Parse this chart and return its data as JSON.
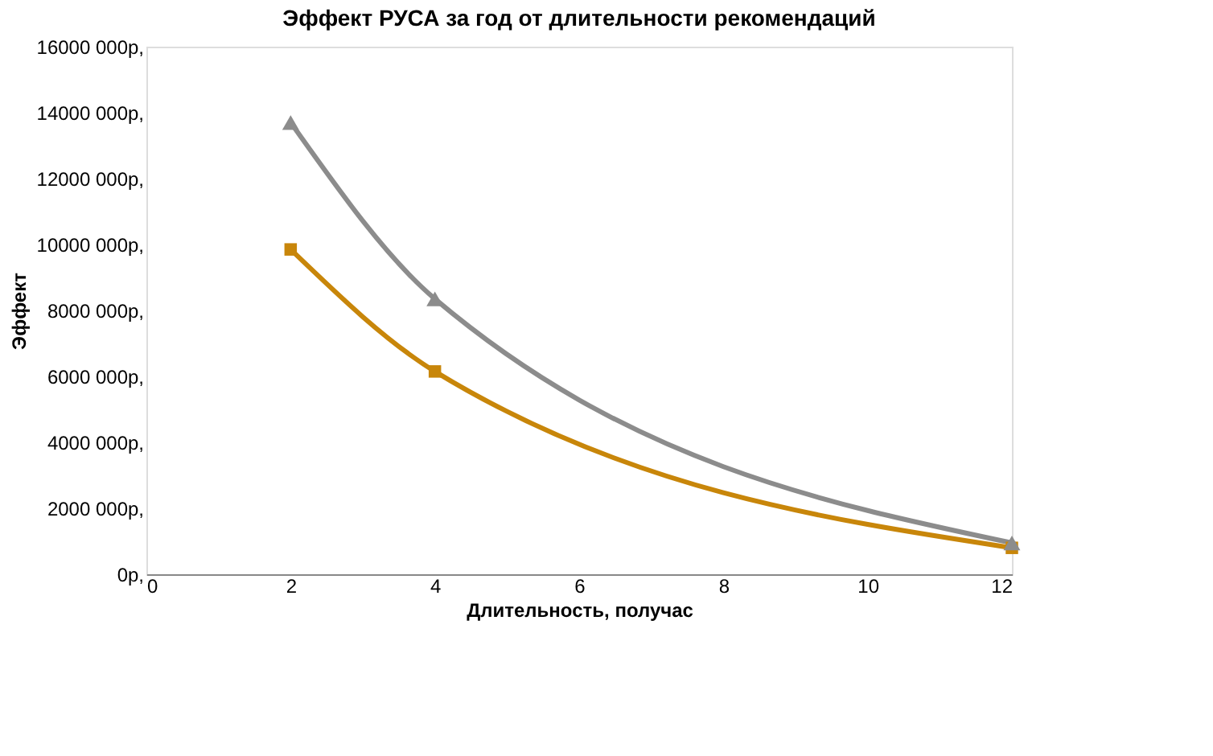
{
  "chart_data": {
    "type": "line",
    "title": "Эффект РУСА за год от длительности рекомендаций",
    "xlabel": "Длительность, получас",
    "ylabel": "Эффект",
    "x": [
      2,
      4,
      12
    ],
    "series": [
      {
        "color": "#8c8c8c",
        "values": [
          13700000,
          8350000,
          950000
        ],
        "marker": "triangle"
      },
      {
        "color": "#c8860a",
        "values": [
          9850000,
          6150000,
          800000
        ],
        "marker": "square"
      }
    ],
    "xlim": [
      0,
      12
    ],
    "xticks": [
      0,
      2,
      4,
      6,
      8,
      10,
      12
    ],
    "ylim": [
      0,
      16000000
    ],
    "yticks": [
      {
        "value": 0,
        "label": "0р,"
      },
      {
        "value": 2000000,
        "label": "2000 000р,"
      },
      {
        "value": 4000000,
        "label": "4000 000р,"
      },
      {
        "value": 6000000,
        "label": "6000 000р,"
      },
      {
        "value": 8000000,
        "label": "8000 000р,"
      },
      {
        "value": 10000000,
        "label": "10000 000р,"
      },
      {
        "value": 12000000,
        "label": "12000 000р,"
      },
      {
        "value": 14000000,
        "label": "14000 000р,"
      },
      {
        "value": 16000000,
        "label": "16000 000р,"
      }
    ],
    "grid": false,
    "line_style": "solid"
  }
}
